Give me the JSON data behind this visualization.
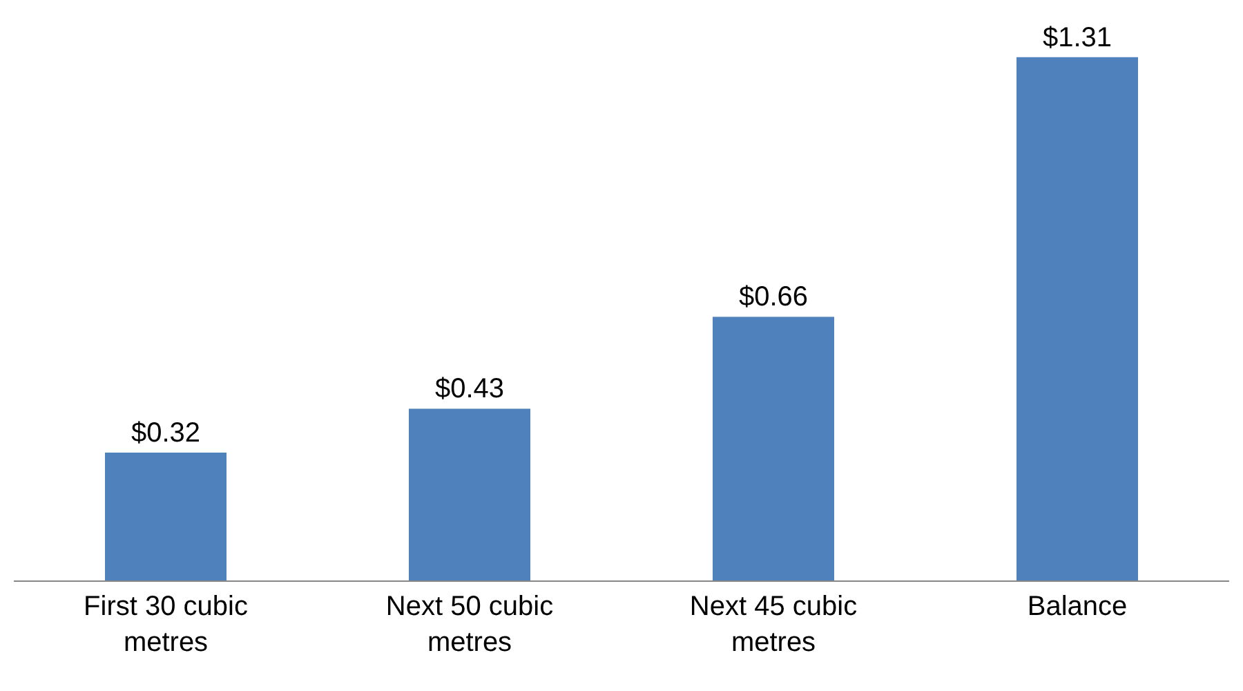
{
  "chart_data": {
    "type": "bar",
    "categories": [
      "First 30 cubic metres",
      "Next 50 cubic metres",
      "Next 45 cubic metres",
      "Balance"
    ],
    "values": [
      0.32,
      0.43,
      0.66,
      1.31
    ],
    "value_labels": [
      "$0.32",
      "$0.43",
      "$0.66",
      "$1.31"
    ],
    "color": "#4f81bd",
    "legend": false
  }
}
